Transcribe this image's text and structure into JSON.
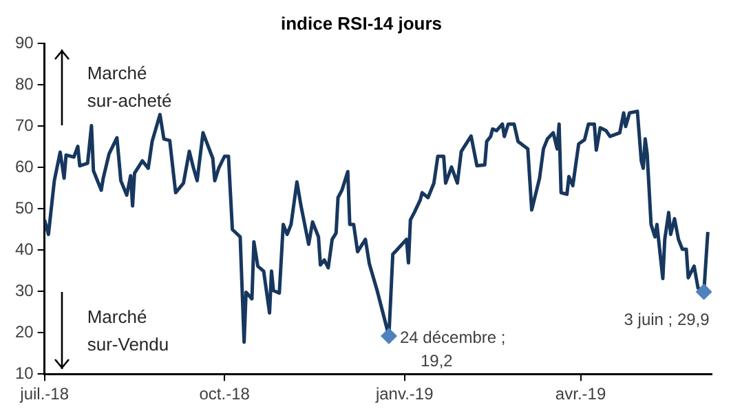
{
  "chart_data": {
    "type": "line",
    "title": "indice RSI-14 jours",
    "xlim": [
      "2018-07-01",
      "2019-06-07"
    ],
    "xticks": [
      {
        "value": "2018-07-01",
        "label": "juil.-18"
      },
      {
        "value": "2018-10-01",
        "label": "oct.-18"
      },
      {
        "value": "2019-01-01",
        "label": "janv.-19"
      },
      {
        "value": "2019-04-01",
        "label": "avr.-19"
      }
    ],
    "ylim": [
      10,
      90
    ],
    "yticks": [
      10,
      20,
      30,
      40,
      50,
      60,
      70,
      80,
      90
    ],
    "series": [
      {
        "color": "#17375e",
        "x": [
          "2018-07-01",
          "2018-07-03",
          "2018-07-06",
          "2018-07-09",
          "2018-07-11",
          "2018-07-12",
          "2018-07-16",
          "2018-07-18",
          "2018-07-19",
          "2018-07-23",
          "2018-07-25",
          "2018-07-26",
          "2018-07-30",
          "2018-07-31",
          "2018-08-03",
          "2018-08-07",
          "2018-08-09",
          "2018-08-12",
          "2018-08-14",
          "2018-08-15",
          "2018-08-16",
          "2018-08-20",
          "2018-08-23",
          "2018-08-25",
          "2018-08-29",
          "2018-08-31",
          "2018-09-03",
          "2018-09-06",
          "2018-09-10",
          "2018-09-13",
          "2018-09-15",
          "2018-09-17",
          "2018-09-20",
          "2018-09-25",
          "2018-09-26",
          "2018-09-28",
          "2018-10-01",
          "2018-10-03",
          "2018-10-05",
          "2018-10-09",
          "2018-10-11",
          "2018-10-12",
          "2018-10-15",
          "2018-10-16",
          "2018-10-18",
          "2018-10-21",
          "2018-10-24",
          "2018-10-25",
          "2018-10-26",
          "2018-10-29",
          "2018-10-31",
          "2018-11-02",
          "2018-11-04",
          "2018-11-07",
          "2018-11-09",
          "2018-11-13",
          "2018-11-15",
          "2018-11-18",
          "2018-11-19",
          "2018-11-21",
          "2018-11-23",
          "2018-11-25",
          "2018-11-27",
          "2018-11-28",
          "2018-11-30",
          "2018-12-03",
          "2018-12-04",
          "2018-12-06",
          "2018-12-08",
          "2018-12-12",
          "2018-12-14",
          "2018-12-18",
          "2018-12-24",
          "2018-12-26",
          "2018-12-28",
          "2019-01-02",
          "2019-01-03",
          "2019-01-04",
          "2019-01-06",
          "2019-01-09",
          "2019-01-10",
          "2019-01-13",
          "2019-01-16",
          "2019-01-18",
          "2019-01-21",
          "2019-01-22",
          "2019-01-25",
          "2019-01-28",
          "2019-01-30",
          "2019-02-04",
          "2019-02-07",
          "2019-02-11",
          "2019-02-12",
          "2019-02-14",
          "2019-02-15",
          "2019-02-17",
          "2019-02-20",
          "2019-02-21",
          "2019-02-23",
          "2019-02-26",
          "2019-02-28",
          "2019-03-05",
          "2019-03-07",
          "2019-03-11",
          "2019-03-13",
          "2019-03-15",
          "2019-03-18",
          "2019-03-20",
          "2019-03-21",
          "2019-03-22",
          "2019-03-25",
          "2019-03-26",
          "2019-03-28",
          "2019-03-31",
          "2019-04-03",
          "2019-04-05",
          "2019-04-08",
          "2019-04-09",
          "2019-04-11",
          "2019-04-14",
          "2019-04-16",
          "2019-04-21",
          "2019-04-23",
          "2019-04-24",
          "2019-04-26",
          "2019-04-30",
          "2019-05-02",
          "2019-05-03",
          "2019-05-04",
          "2019-05-05",
          "2019-05-07",
          "2019-05-09",
          "2019-05-10",
          "2019-05-13",
          "2019-05-14",
          "2019-05-16",
          "2019-05-17",
          "2019-05-19",
          "2019-05-21",
          "2019-05-23",
          "2019-05-25",
          "2019-05-26",
          "2019-05-29",
          "2019-05-31",
          "2019-06-03",
          "2019-06-05"
        ],
        "values": [
          47.3,
          43.8,
          56.8,
          63.7,
          57.4,
          63,
          62.5,
          65.1,
          60.4,
          61,
          70.1,
          59.2,
          54.5,
          57.4,
          63.3,
          67.2,
          56.8,
          53.3,
          58,
          50.7,
          58.6,
          61.6,
          59.8,
          66.3,
          72.8,
          66.9,
          66.5,
          53.9,
          56.2,
          63.9,
          60.1,
          56.8,
          68.4,
          62.2,
          56.8,
          59.8,
          62.7,
          62.7,
          45,
          43.2,
          17.7,
          29.8,
          28.2,
          42,
          36.1,
          34.9,
          24.8,
          34.9,
          30.2,
          29.6,
          46.2,
          43.8,
          46.2,
          56.5,
          50.9,
          41.4,
          46.8,
          43.2,
          36.4,
          37.6,
          35.7,
          42.6,
          44.1,
          52.7,
          54.5,
          59,
          46.2,
          46.2,
          39.6,
          42.6,
          36.7,
          30.2,
          19.2,
          39,
          40,
          42.6,
          36.9,
          47.3,
          49.1,
          52.1,
          53.9,
          52.7,
          56.2,
          62.7,
          62.7,
          56.2,
          60.1,
          56.2,
          63.9,
          67.6,
          60.4,
          60.6,
          66.3,
          67.5,
          69.3,
          68.9,
          70.5,
          67.5,
          70.5,
          70.5,
          66.3,
          64.5,
          49.7,
          57.4,
          64.5,
          66.9,
          68.4,
          64.5,
          70.5,
          53.9,
          53.5,
          57.8,
          55.6,
          65.7,
          66.7,
          70.5,
          70.5,
          64.2,
          69.6,
          68.9,
          67.5,
          68.4,
          73.2,
          69.9,
          73.2,
          73.6,
          61.6,
          59.8,
          66.9,
          63.3,
          46.2,
          43.2,
          46.2,
          33.1,
          42.6,
          49.1,
          43.8,
          47.6,
          42.6,
          40.2,
          40.2,
          33.3,
          36.1,
          30.8,
          29.9,
          44.4
        ]
      },
      {
        "type": "scatter",
        "marker": "diamond",
        "color": "#4f81bd",
        "x": [
          "2018-12-24",
          "2019-06-03"
        ],
        "values": [
          19.2,
          29.9
        ]
      }
    ],
    "annotations": [
      "Marché sur-acheté",
      "Marché sur-Vendu",
      {
        "text": "24 décembre ; 19,2",
        "x": "2018-12-24",
        "y": 19.2
      },
      {
        "text": "3 juin ; 29,9",
        "x": "2019-06-03",
        "y": 29.9
      }
    ]
  }
}
